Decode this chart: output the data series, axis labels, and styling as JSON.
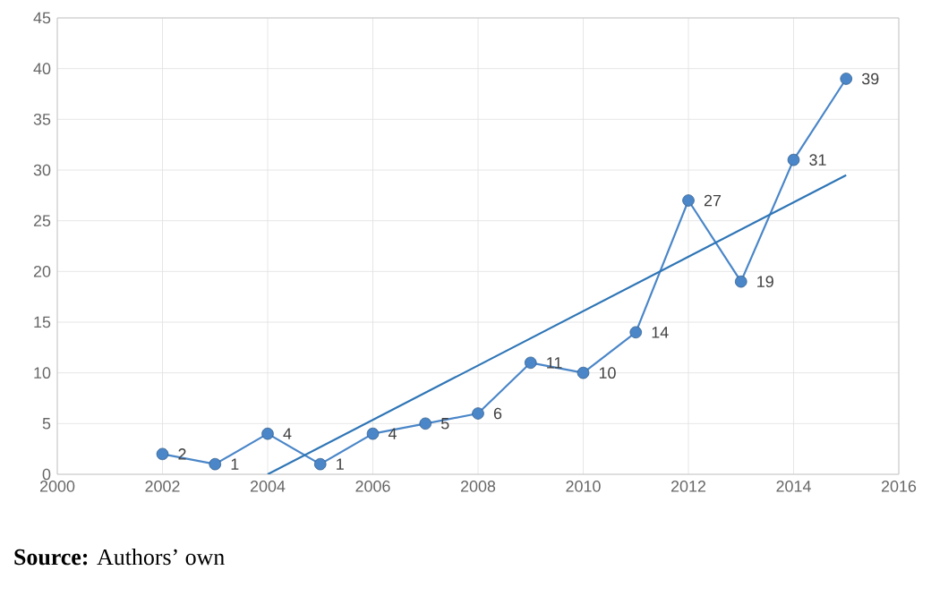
{
  "chart_data": {
    "type": "line",
    "x": [
      2002,
      2003,
      2004,
      2005,
      2006,
      2007,
      2008,
      2009,
      2010,
      2011,
      2012,
      2013,
      2014,
      2015
    ],
    "series": [
      {
        "color": "#4a86c8",
        "values": [
          2,
          1,
          4,
          1,
          4,
          5,
          6,
          11,
          10,
          14,
          27,
          19,
          31,
          39
        ],
        "marker": "circle",
        "value_labels": [
          "2",
          "1",
          "4",
          "1",
          "4",
          "5",
          "6",
          "11",
          "10",
          "14",
          "27",
          "19",
          "31",
          "39"
        ]
      },
      {
        "type": "line",
        "color": "#2e75b6",
        "x": [
          2004,
          2015
        ],
        "values": [
          0,
          29.5
        ],
        "marker": "none"
      }
    ],
    "xlim": [
      2000,
      2016
    ],
    "xticks": [
      2000,
      2002,
      2004,
      2006,
      2008,
      2010,
      2012,
      2014,
      2016
    ],
    "ylim": [
      0,
      45
    ],
    "yticks": [
      0,
      5,
      10,
      15,
      20,
      25,
      30,
      35,
      40,
      45
    ],
    "grid": true,
    "annotations": [
      "**Source:** Authors’ own"
    ]
  }
}
